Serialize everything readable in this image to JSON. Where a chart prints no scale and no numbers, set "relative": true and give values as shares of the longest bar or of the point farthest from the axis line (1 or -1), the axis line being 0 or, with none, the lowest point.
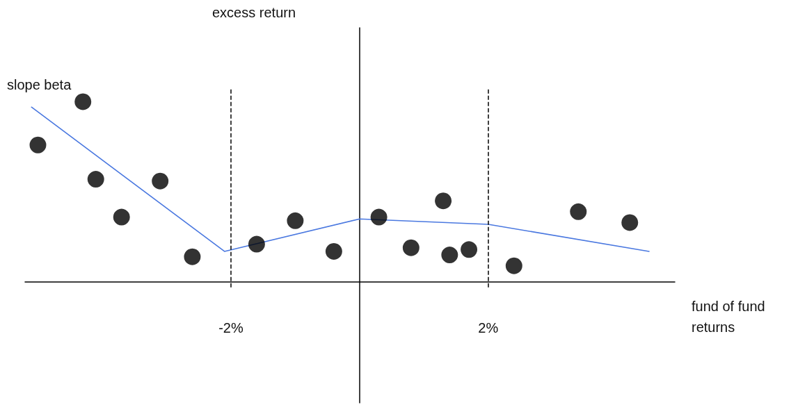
{
  "chart_data": {
    "type": "scatter",
    "relative": true,
    "xlabel": "fund of fund returns",
    "annotations": [
      "slope beta",
      "excess return"
    ],
    "xlim": [
      -5.2,
      4.9
    ],
    "xticks": [
      {
        "value": -2,
        "label": "-2%"
      },
      {
        "value": 2,
        "label": "2%"
      }
    ],
    "grid": false,
    "series": [
      {
        "marker": "circle",
        "color": "#000000",
        "x": [
          -5.0,
          -4.3,
          -4.1,
          -3.7,
          -3.1,
          -2.6,
          -1.6,
          -1.0,
          -0.4,
          0.3,
          0.8,
          1.3,
          1.4,
          1.7,
          2.4,
          3.4,
          4.2
        ],
        "values": [
          0.76,
          1.0,
          0.57,
          0.36,
          0.56,
          0.14,
          0.21,
          0.34,
          0.17,
          0.36,
          0.19,
          0.45,
          0.15,
          0.18,
          0.09,
          0.39,
          0.33
        ]
      },
      {
        "type": "line",
        "marker": "none",
        "line_style": "solid",
        "color": "#4a78e0",
        "x": [
          -5.1,
          -2.1,
          0,
          2.0,
          4.5
        ],
        "values": [
          0.97,
          0.17,
          0.35,
          0.32,
          0.17
        ]
      }
    ],
    "ref_lines": [
      {
        "axis": "x",
        "value": -2,
        "line_style": "dashed",
        "color": "#000000"
      },
      {
        "axis": "x",
        "value": 2,
        "line_style": "dashed",
        "color": "#000000"
      }
    ]
  }
}
